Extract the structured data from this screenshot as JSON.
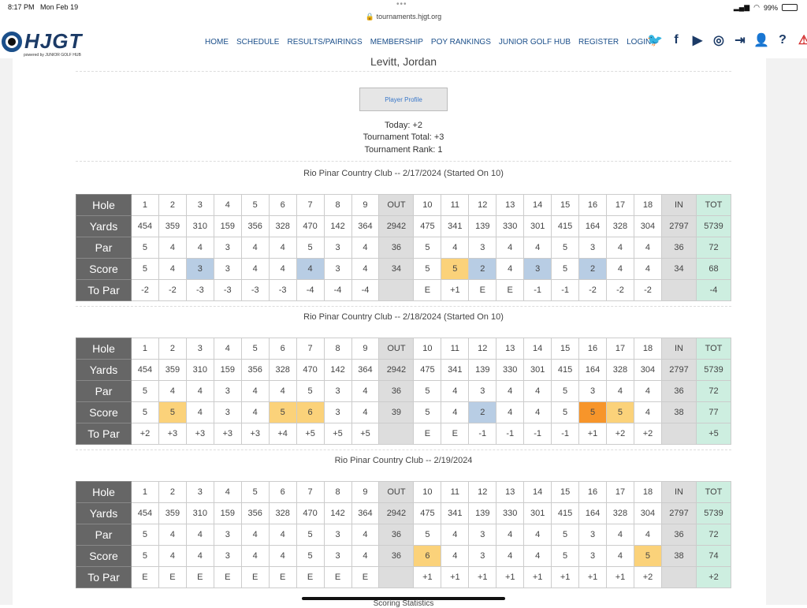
{
  "status": {
    "time": "8:17 PM",
    "date": "Mon Feb 19",
    "url": "tournaments.hjgt.org",
    "battery": "99%"
  },
  "logo": {
    "text": "HJGT",
    "sub": "powered by JUNIOR GOLF HUB"
  },
  "nav": [
    "HOME",
    "SCHEDULE",
    "RESULTS/PAIRINGS",
    "MEMBERSHIP",
    "POY RANKINGS",
    "JUNIOR GOLF HUB",
    "REGISTER",
    "LOGIN"
  ],
  "player": {
    "name": "Levitt, Jordan",
    "profile_button": "Player Profile"
  },
  "stats": {
    "today": "Today: +2",
    "total": "Tournament Total: +3",
    "rank": "Tournament Rank: 1"
  },
  "holes": [
    "1",
    "2",
    "3",
    "4",
    "5",
    "6",
    "7",
    "8",
    "9",
    "OUT",
    "10",
    "11",
    "12",
    "13",
    "14",
    "15",
    "16",
    "17",
    "18",
    "IN",
    "TOT"
  ],
  "yards": [
    "454",
    "359",
    "310",
    "159",
    "356",
    "328",
    "470",
    "142",
    "364",
    "2942",
    "475",
    "341",
    "139",
    "330",
    "301",
    "415",
    "164",
    "328",
    "304",
    "2797",
    "5739"
  ],
  "par": [
    "5",
    "4",
    "4",
    "3",
    "4",
    "4",
    "5",
    "3",
    "4",
    "36",
    "5",
    "4",
    "3",
    "4",
    "4",
    "5",
    "3",
    "4",
    "4",
    "36",
    "72"
  ],
  "labels": {
    "hole": "Hole",
    "yards": "Yards",
    "par": "Par",
    "score": "Score",
    "topar": "To Par"
  },
  "rounds": [
    {
      "title": "Rio Pinar Country Club -- 2/17/2024 (Started On 10)",
      "score": [
        "5",
        "4",
        "3",
        "3",
        "4",
        "4",
        "4",
        "3",
        "4",
        "34",
        "5",
        "5",
        "2",
        "4",
        "3",
        "5",
        "2",
        "4",
        "4",
        "34",
        "68"
      ],
      "topar": [
        "-2",
        "-2",
        "-3",
        "-3",
        "-3",
        "-3",
        "-4",
        "-4",
        "-4",
        "",
        "E",
        "+1",
        "E",
        "E",
        "-1",
        "-1",
        "-2",
        "-2",
        "-2",
        "",
        "-4"
      ],
      "colors": [
        "",
        "",
        "birdie",
        "",
        "",
        "",
        "birdie",
        "",
        "",
        "",
        "",
        "bogey",
        "birdie",
        "",
        "birdie",
        "",
        "birdie",
        "",
        "",
        "",
        ""
      ]
    },
    {
      "title": "Rio Pinar Country Club -- 2/18/2024 (Started On 10)",
      "score": [
        "5",
        "5",
        "4",
        "3",
        "4",
        "5",
        "6",
        "3",
        "4",
        "39",
        "5",
        "4",
        "2",
        "4",
        "4",
        "5",
        "5",
        "5",
        "4",
        "38",
        "77"
      ],
      "topar": [
        "+2",
        "+3",
        "+3",
        "+3",
        "+3",
        "+4",
        "+5",
        "+5",
        "+5",
        "",
        "E",
        "E",
        "-1",
        "-1",
        "-1",
        "-1",
        "+1",
        "+2",
        "+2",
        "",
        "+5"
      ],
      "colors": [
        "",
        "bogey",
        "",
        "",
        "",
        "bogey",
        "bogey",
        "",
        "",
        "",
        "",
        "",
        "birdie",
        "",
        "",
        "",
        "double",
        "bogey",
        "",
        "",
        ""
      ]
    },
    {
      "title": "Rio Pinar Country Club -- 2/19/2024",
      "score": [
        "5",
        "4",
        "4",
        "3",
        "4",
        "4",
        "5",
        "3",
        "4",
        "36",
        "6",
        "4",
        "3",
        "4",
        "4",
        "5",
        "3",
        "4",
        "5",
        "38",
        "74"
      ],
      "topar": [
        "E",
        "E",
        "E",
        "E",
        "E",
        "E",
        "E",
        "E",
        "E",
        "",
        "+1",
        "+1",
        "+1",
        "+1",
        "+1",
        "+1",
        "+1",
        "+1",
        "+2",
        "",
        "+2"
      ],
      "colors": [
        "",
        "",
        "",
        "",
        "",
        "",
        "",
        "",
        "",
        "",
        "bogey",
        "",
        "",
        "",
        "",
        "",
        "",
        "",
        "bogey",
        "",
        ""
      ]
    }
  ],
  "footer_peek": "Scoring Statistics"
}
